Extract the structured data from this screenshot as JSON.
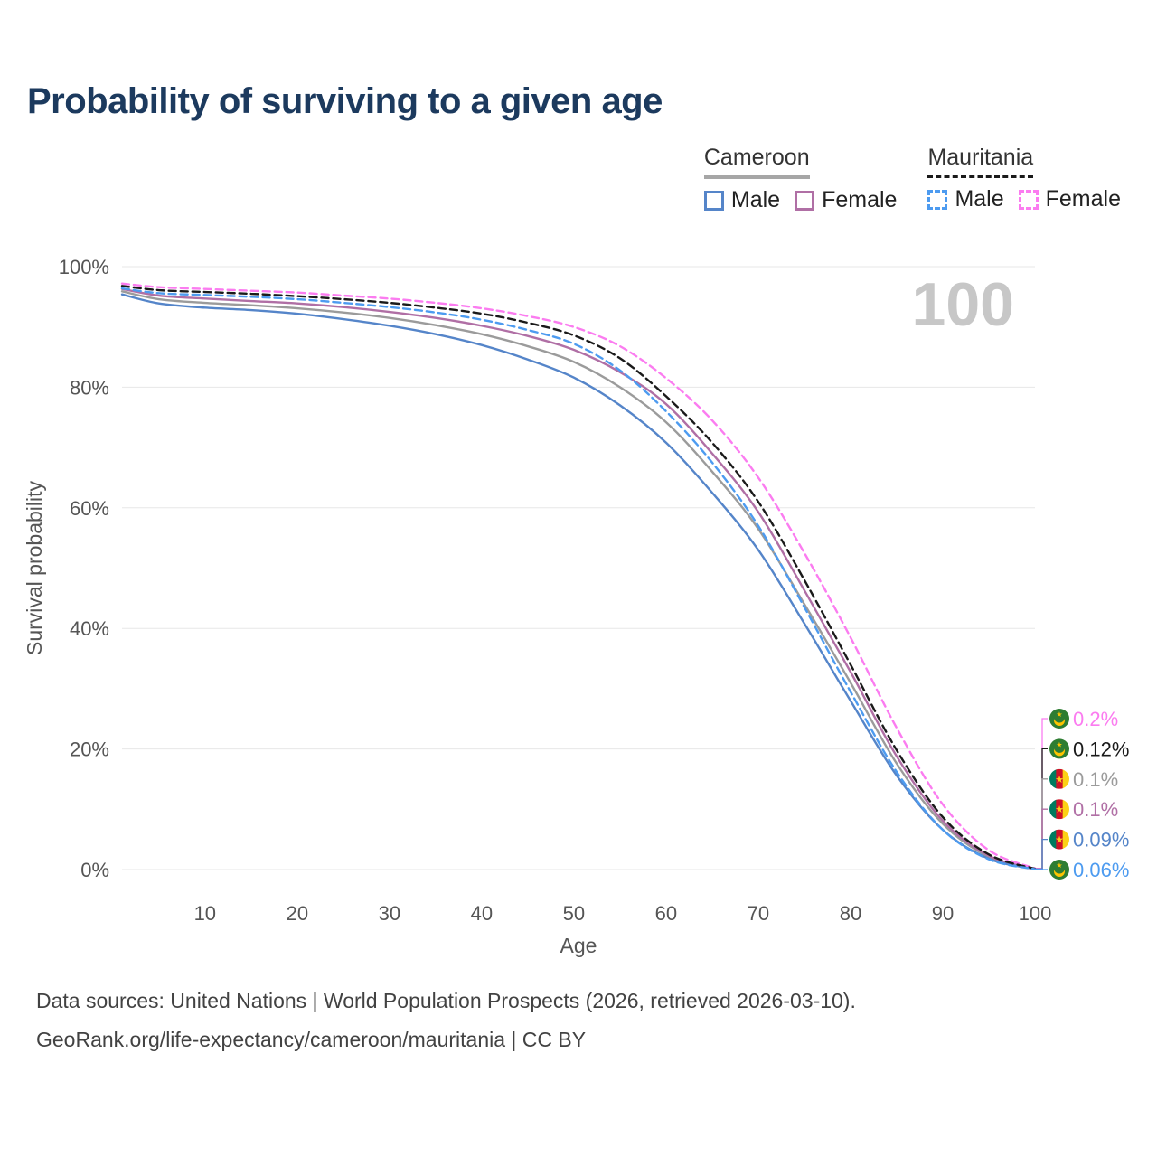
{
  "title": "Probability of surviving to a given age",
  "watermark": "100",
  "legend": {
    "groups": [
      {
        "label": "Cameroon",
        "line_style": "solid",
        "underline_color": "#a6a6a6",
        "items": [
          {
            "label": "Male",
            "color": "#5585c9"
          },
          {
            "label": "Female",
            "color": "#b06fa5"
          }
        ]
      },
      {
        "label": "Mauritania",
        "line_style": "dashed",
        "underline_color": "#1a1a1a",
        "items": [
          {
            "label": "Male",
            "color": "#4d9bf0"
          },
          {
            "label": "Female",
            "color": "#fb7cf0"
          }
        ]
      }
    ]
  },
  "flags": {
    "cameroon": {
      "type": "vertical-stripes",
      "colors": [
        "#007a5e",
        "#ce1126",
        "#fcd116"
      ],
      "star": "★",
      "star_color": "#fcd116"
    },
    "mauritania": {
      "type": "crescent",
      "field": "#2e7d32",
      "emblem": "#ffc400",
      "star": "★"
    }
  },
  "chart_data": {
    "type": "line",
    "title": "Probability of surviving to a given age",
    "xlabel": "Age",
    "ylabel": "Survival probability",
    "xlim": [
      1,
      100
    ],
    "ylim": [
      0,
      100
    ],
    "xticks": [
      10,
      20,
      30,
      40,
      50,
      60,
      70,
      80,
      90,
      100
    ],
    "yticks": [
      0,
      20,
      40,
      60,
      80,
      100
    ],
    "ytick_suffix": "%",
    "grid": "horizontal",
    "legend_position": "top-right",
    "x": [
      1,
      5,
      10,
      15,
      20,
      25,
      30,
      35,
      40,
      45,
      50,
      55,
      60,
      65,
      70,
      75,
      80,
      85,
      90,
      95,
      100
    ],
    "series": [
      {
        "name": "Mauritania Female",
        "country": "Mauritania",
        "sex": "Female",
        "style": "dashed",
        "color": "#fb7cf0",
        "end_label": "0.2%",
        "end_slot": 0,
        "flag": "mauritania",
        "values": [
          97.2,
          96.6,
          96.3,
          96.0,
          95.7,
          95.2,
          94.7,
          94.0,
          93.1,
          91.8,
          90.0,
          86.8,
          81.5,
          74.5,
          65.0,
          52.5,
          38.5,
          23.5,
          10.8,
          3.2,
          0.2
        ]
      },
      {
        "name": "Mauritania Total",
        "country": "Mauritania",
        "sex": "Total",
        "style": "dashed",
        "color": "#1a1a1a",
        "end_label": "0.12%",
        "end_slot": 1,
        "flag": "mauritania",
        "values": [
          96.8,
          96.1,
          95.8,
          95.5,
          95.1,
          94.6,
          94.0,
          93.2,
          92.2,
          90.7,
          88.6,
          84.8,
          78.5,
          70.8,
          61.0,
          48.0,
          34.0,
          19.8,
          8.7,
          2.5,
          0.12
        ]
      },
      {
        "name": "Cameroon Total",
        "country": "Cameroon",
        "sex": "Total",
        "style": "solid",
        "color": "#9b9b9b",
        "end_label": "0.1%",
        "end_slot": 2,
        "flag": "cameroon",
        "values": [
          95.9,
          94.6,
          94.0,
          93.6,
          93.1,
          92.4,
          91.5,
          90.3,
          88.8,
          86.8,
          84.2,
          80.0,
          74.2,
          66.0,
          56.5,
          44.0,
          31.0,
          17.6,
          7.6,
          2.1,
          0.1
        ]
      },
      {
        "name": "Cameroon Female",
        "country": "Cameroon",
        "sex": "Female",
        "style": "solid",
        "color": "#b06fa5",
        "end_label": "0.1%",
        "end_slot": 3,
        "flag": "cameroon",
        "values": [
          96.3,
          95.2,
          94.7,
          94.3,
          93.9,
          93.3,
          92.5,
          91.5,
          90.2,
          88.5,
          86.2,
          82.5,
          77.2,
          69.0,
          59.3,
          46.3,
          32.8,
          18.8,
          8.1,
          2.3,
          0.1
        ]
      },
      {
        "name": "Cameroon Male",
        "country": "Cameroon",
        "sex": "Male",
        "style": "solid",
        "color": "#5585c9",
        "end_label": "0.09%",
        "end_slot": 4,
        "flag": "cameroon",
        "values": [
          95.4,
          93.9,
          93.2,
          92.8,
          92.2,
          91.3,
          90.2,
          88.8,
          87.0,
          84.6,
          81.6,
          77.0,
          70.8,
          62.5,
          53.0,
          40.8,
          28.0,
          15.6,
          6.6,
          1.8,
          0.09
        ]
      },
      {
        "name": "Mauritania Male",
        "country": "Mauritania",
        "sex": "Male",
        "style": "dashed",
        "color": "#4d9bf0",
        "end_label": "0.06%",
        "end_slot": 5,
        "flag": "mauritania",
        "values": [
          96.4,
          95.6,
          95.3,
          95.0,
          94.6,
          94.0,
          93.3,
          92.4,
          91.2,
          89.5,
          87.2,
          82.8,
          76.0,
          67.5,
          57.0,
          43.5,
          29.5,
          16.2,
          6.6,
          1.7,
          0.06
        ]
      }
    ]
  },
  "footer": {
    "line1": "Data sources: United Nations | World Population Prospects (2026, retrieved 2026-03-10).",
    "line2": "GeoRank.org/life-expectancy/cameroon/mauritania | CC BY"
  }
}
